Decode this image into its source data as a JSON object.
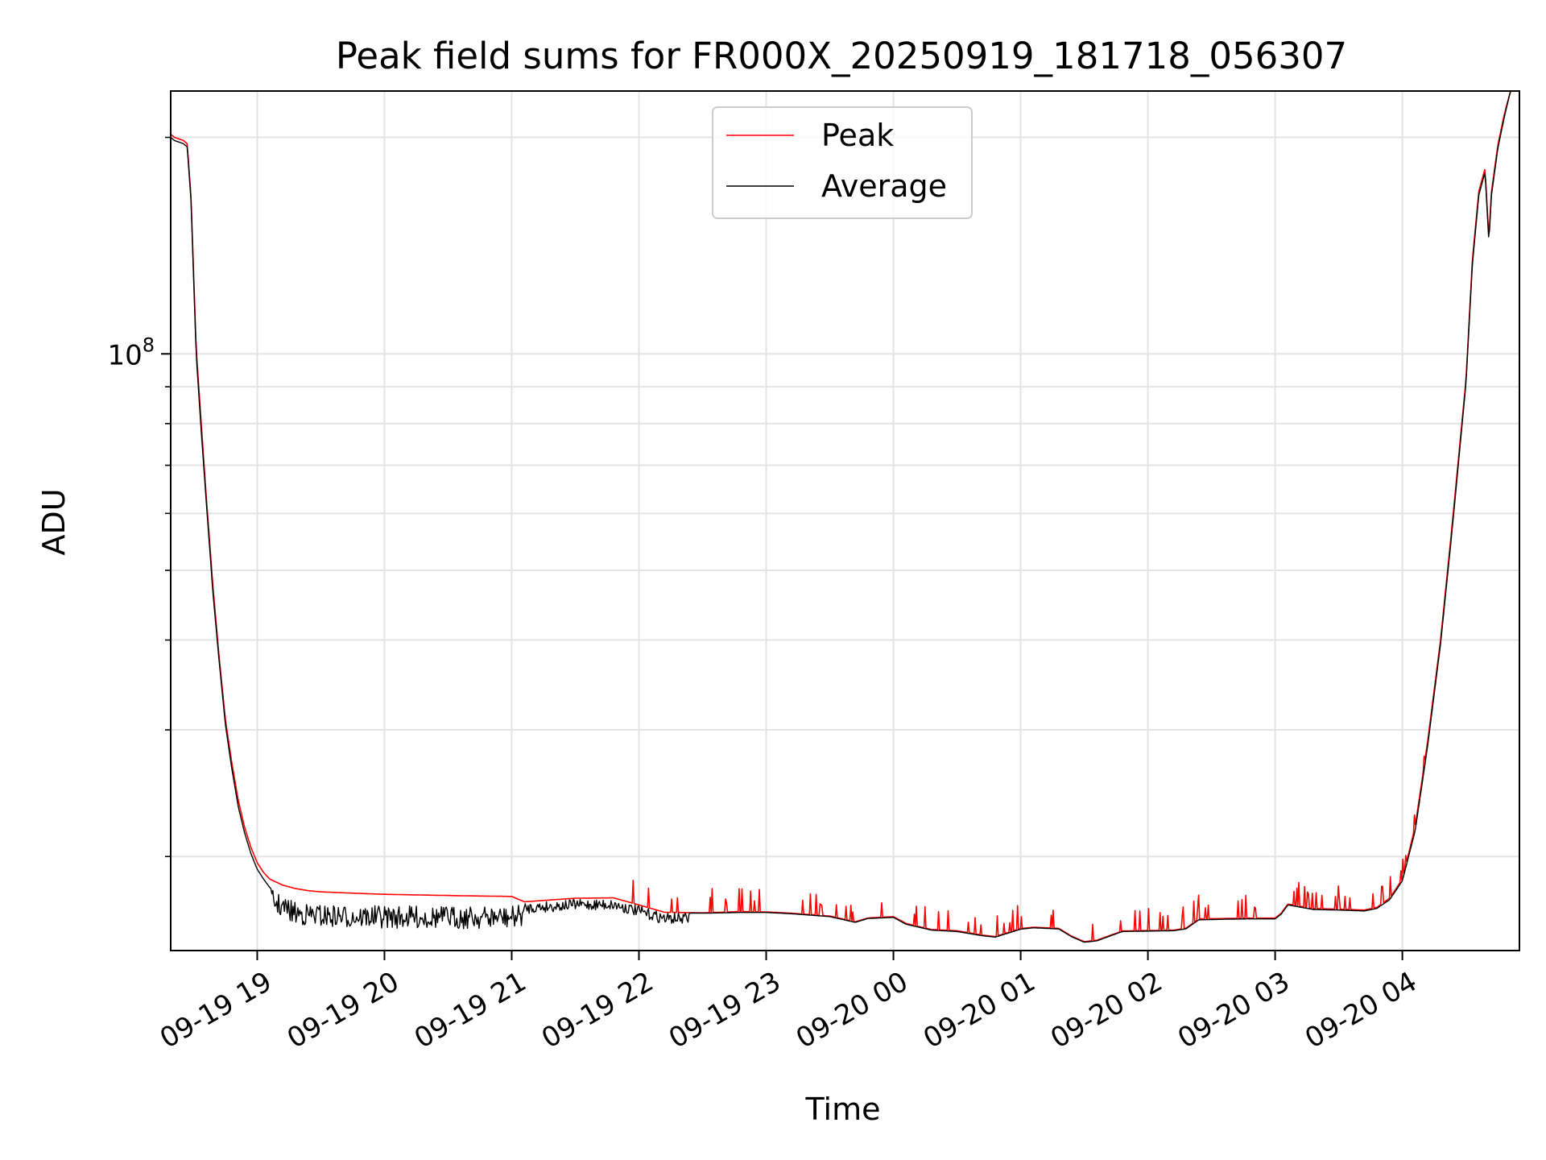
{
  "chart_data": {
    "type": "line",
    "title": "Peak field sums for FR000X_20250919_181718_056307",
    "xlabel": "Time",
    "ylabel": "ADU",
    "yscale": "log",
    "xlim_hours": [
      18.32,
      28.92
    ],
    "ylim": [
      14800000,
      232000000
    ],
    "grid": true,
    "legend_position": "top-center",
    "x_ticks": [
      {
        "hour": 19,
        "label": "09-19 19"
      },
      {
        "hour": 20,
        "label": "09-19 20"
      },
      {
        "hour": 21,
        "label": "09-19 21"
      },
      {
        "hour": 22,
        "label": "09-19 22"
      },
      {
        "hour": 23,
        "label": "09-19 23"
      },
      {
        "hour": 24,
        "label": "09-20 00"
      },
      {
        "hour": 25,
        "label": "09-20 01"
      },
      {
        "hour": 26,
        "label": "09-20 02"
      },
      {
        "hour": 27,
        "label": "09-20 03"
      },
      {
        "hour": 28,
        "label": "09-20 04"
      }
    ],
    "y_major_ticks": [
      {
        "value": 100000000,
        "base": "10",
        "exp": "8"
      }
    ],
    "y_minor_ticks": [
      20000000,
      30000000,
      40000000,
      50000000,
      60000000,
      70000000,
      80000000,
      90000000,
      200000000
    ],
    "series": [
      {
        "name": "Peak",
        "color": "#ff0000",
        "spike_ranges_hours": [
          [
            21.95,
            28.2
          ]
        ],
        "x_hours": [
          18.32,
          18.35,
          18.42,
          18.45,
          18.48,
          18.52,
          18.56,
          18.6,
          18.65,
          18.7,
          18.75,
          18.8,
          18.85,
          18.9,
          18.95,
          19.0,
          19.05,
          19.1,
          19.2,
          19.3,
          19.4,
          19.5,
          19.7,
          20.0,
          20.3,
          20.6,
          21.0,
          21.1,
          21.5,
          21.8,
          22.0,
          22.2,
          22.5,
          22.8,
          23.0,
          23.2,
          23.5,
          23.7,
          23.8,
          24.0,
          24.1,
          24.3,
          24.5,
          24.7,
          24.8,
          25.0,
          25.1,
          25.3,
          25.4,
          25.5,
          25.6,
          25.7,
          25.8,
          26.0,
          26.2,
          26.3,
          26.4,
          26.6,
          26.8,
          27.0,
          27.05,
          27.1,
          27.3,
          27.5,
          27.7,
          27.8,
          27.9,
          28.0,
          28.1,
          28.2,
          28.3,
          28.4,
          28.5,
          28.55,
          28.6,
          28.65,
          28.68,
          28.7,
          28.75,
          28.8,
          28.85,
          28.92
        ],
        "values_adu": [
          202000000,
          200000000,
          198000000,
          196000000,
          165000000,
          102000000,
          80000000,
          63000000,
          48000000,
          38000000,
          31000000,
          27000000,
          24000000,
          22000000,
          20600000,
          19600000,
          19000000,
          18600000,
          18250000,
          18050000,
          17930000,
          17860000,
          17800000,
          17720000,
          17680000,
          17640000,
          17600000,
          17300000,
          17500000,
          17520000,
          17130000,
          16730000,
          16700000,
          16770000,
          16750000,
          16680000,
          16530000,
          16230000,
          16430000,
          16500000,
          16140000,
          15830000,
          15770000,
          15550000,
          15480000,
          15880000,
          15950000,
          15890000,
          15500000,
          15230000,
          15300000,
          15530000,
          15760000,
          15780000,
          15800000,
          15900000,
          16380000,
          16400000,
          16420000,
          16420000,
          16700000,
          17180000,
          16930000,
          16900000,
          16850000,
          17000000,
          17500000,
          18600000,
          22000000,
          29000000,
          40000000,
          60000000,
          92000000,
          135000000,
          168000000,
          181000000,
          145000000,
          168000000,
          195000000,
          215000000,
          232000000,
          232000000
        ]
      },
      {
        "name": "Average",
        "color": "#000000",
        "noise_ranges_hours": [
          [
            19.1,
            21.1
          ],
          [
            21.1,
            22.4
          ]
        ],
        "x_hours": [
          18.32,
          18.35,
          18.42,
          18.45,
          18.48,
          18.52,
          18.56,
          18.6,
          18.65,
          18.7,
          18.75,
          18.8,
          18.85,
          18.9,
          18.95,
          19.0,
          19.05,
          19.1,
          19.2,
          19.3,
          19.4,
          19.5,
          19.7,
          20.0,
          20.3,
          20.6,
          21.0,
          21.1,
          21.5,
          21.8,
          22.0,
          22.2,
          22.5,
          22.8,
          23.0,
          23.2,
          23.5,
          23.7,
          23.8,
          24.0,
          24.1,
          24.3,
          24.5,
          24.7,
          24.8,
          25.0,
          25.1,
          25.3,
          25.4,
          25.5,
          25.6,
          25.7,
          25.8,
          26.0,
          26.2,
          26.3,
          26.4,
          26.6,
          26.8,
          27.0,
          27.05,
          27.1,
          27.3,
          27.5,
          27.7,
          27.8,
          27.9,
          28.0,
          28.1,
          28.2,
          28.3,
          28.4,
          28.5,
          28.55,
          28.6,
          28.65,
          28.68,
          28.7,
          28.75,
          28.8,
          28.85,
          28.92
        ],
        "values_adu": [
          200000000,
          198000000,
          196000000,
          194000000,
          163000000,
          100000000,
          78000000,
          62000000,
          47000000,
          37500000,
          30500000,
          26500000,
          23500000,
          21600000,
          20200000,
          19200000,
          18600000,
          18100000,
          17600000,
          17300000,
          17200000,
          17150000,
          17100000,
          17080000,
          17070000,
          17060000,
          17050000,
          17250000,
          17450000,
          17450000,
          17080000,
          16700000,
          16680000,
          16720000,
          16720000,
          16650000,
          16500000,
          16200000,
          16400000,
          16460000,
          16100000,
          15800000,
          15730000,
          15520000,
          15450000,
          15850000,
          15920000,
          15860000,
          15470000,
          15200000,
          15270000,
          15500000,
          15730000,
          15750000,
          15770000,
          15870000,
          16330000,
          16360000,
          16380000,
          16380000,
          16650000,
          17130000,
          16880000,
          16850000,
          16800000,
          16940000,
          17420000,
          18500000,
          21700000,
          28600000,
          39500000,
          59000000,
          91000000,
          133000000,
          166000000,
          179000000,
          143000000,
          166000000,
          193000000,
          213000000,
          232000000,
          232000000
        ]
      }
    ]
  }
}
